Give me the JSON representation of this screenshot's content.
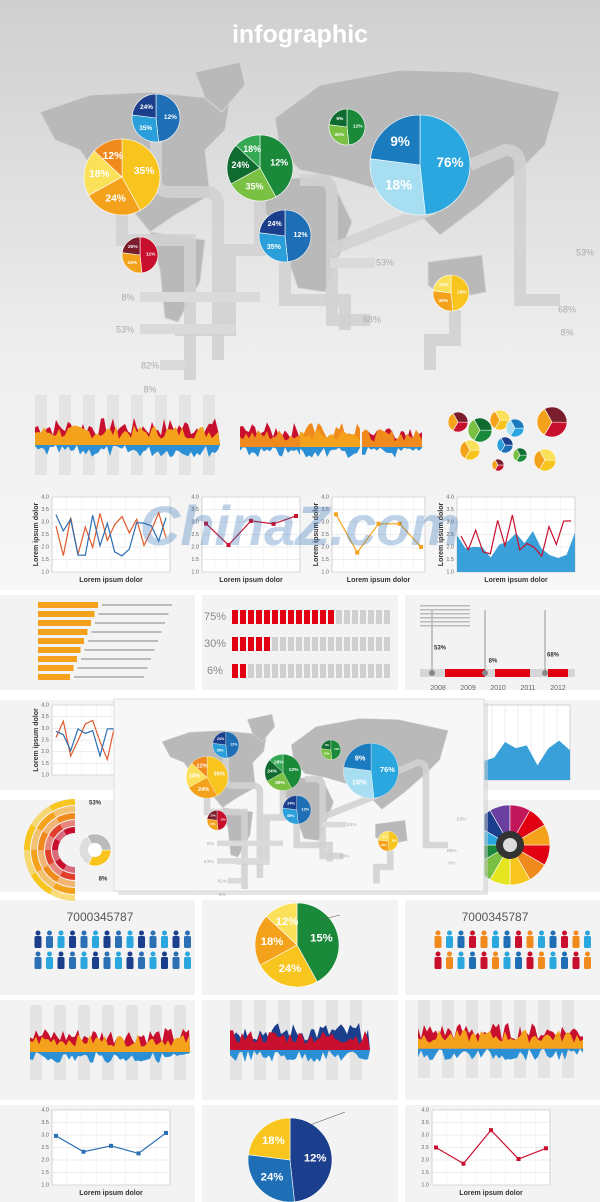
{
  "title": "infographic",
  "watermark": "ChinaZ.com",
  "map": {
    "pies": [
      {
        "labels": [
          "12%",
          "35%",
          "24%"
        ]
      },
      {
        "labels": [
          "35%",
          "24%",
          "18%",
          "12%"
        ]
      },
      {
        "labels": [
          "11%",
          "15%",
          "20%"
        ]
      },
      {
        "labels": [
          "12%",
          "35%",
          "24%",
          "18%"
        ]
      },
      {
        "labels": [
          "12%",
          "35%",
          "24%"
        ]
      },
      {
        "labels": [
          "12%",
          "35%",
          "9%"
        ]
      },
      {
        "labels": [
          "76%",
          "18%",
          "9%"
        ]
      },
      {
        "labels": [
          "18%",
          "35%",
          "12%"
        ]
      }
    ],
    "callouts": [
      "53%",
      "8%",
      "53%",
      "82%",
      "8%",
      "68%",
      "53%",
      "68%",
      "8%"
    ]
  },
  "line_charts": [
    {
      "y_label": "Lorem ipsum dolor",
      "x_label": "Lorem ipsum dolor",
      "yticks": [
        "1.0",
        "1.5",
        "2.0",
        "2.5",
        "3.0",
        "3.5",
        "4.0"
      ]
    },
    {
      "x_label": "Lorem ipsum dolor",
      "yticks": [
        "1.0",
        "1.5",
        "2.0",
        "2.5",
        "3.0",
        "3.5",
        "4.0"
      ]
    },
    {
      "y_label": "Lorem ipsum dolor",
      "x_label": "Lorem ipsum dolor",
      "yticks": [
        "1.0",
        "1.5",
        "2.0",
        "2.5",
        "3.0",
        "3.5",
        "4.0"
      ]
    },
    {
      "y_label": "Lorem ipsum dolor",
      "x_label": "Lorem ipsum dolor",
      "yticks": [
        "1.0",
        "1.5",
        "2.0",
        "2.5",
        "3.0",
        "3.5",
        "4.0"
      ]
    },
    {
      "y_label": "Lorem ipsum dolor",
      "yticks": [
        "1.0",
        "1.5",
        "2.0",
        "2.5",
        "3.0",
        "3.5",
        "4.0"
      ]
    },
    {
      "x_label": "Lorem ipsum dolor",
      "yticks": [
        "1.0",
        "1.5",
        "2.0",
        "2.5",
        "3.0",
        "3.5",
        "4.0"
      ]
    },
    {
      "x_label": "Lorem ipsum dolor",
      "yticks": [
        "1.0",
        "1.5",
        "2.0",
        "2.5",
        "3.0",
        "3.5",
        "4.0"
      ]
    }
  ],
  "gauges": [
    "75%",
    "30%",
    "6%"
  ],
  "timeline": {
    "years": [
      "2008",
      "2009",
      "2010",
      "2011",
      "2012"
    ],
    "markers": [
      "53%",
      "8%",
      "68%"
    ]
  },
  "radial": [
    "53%",
    "8%"
  ],
  "population": [
    "7000345787",
    "7000345787"
  ],
  "pie_mid": [
    "15%",
    "24%",
    "18%",
    "12%"
  ],
  "pie_bottom": [
    "12%",
    "24%",
    "18%"
  ]
}
